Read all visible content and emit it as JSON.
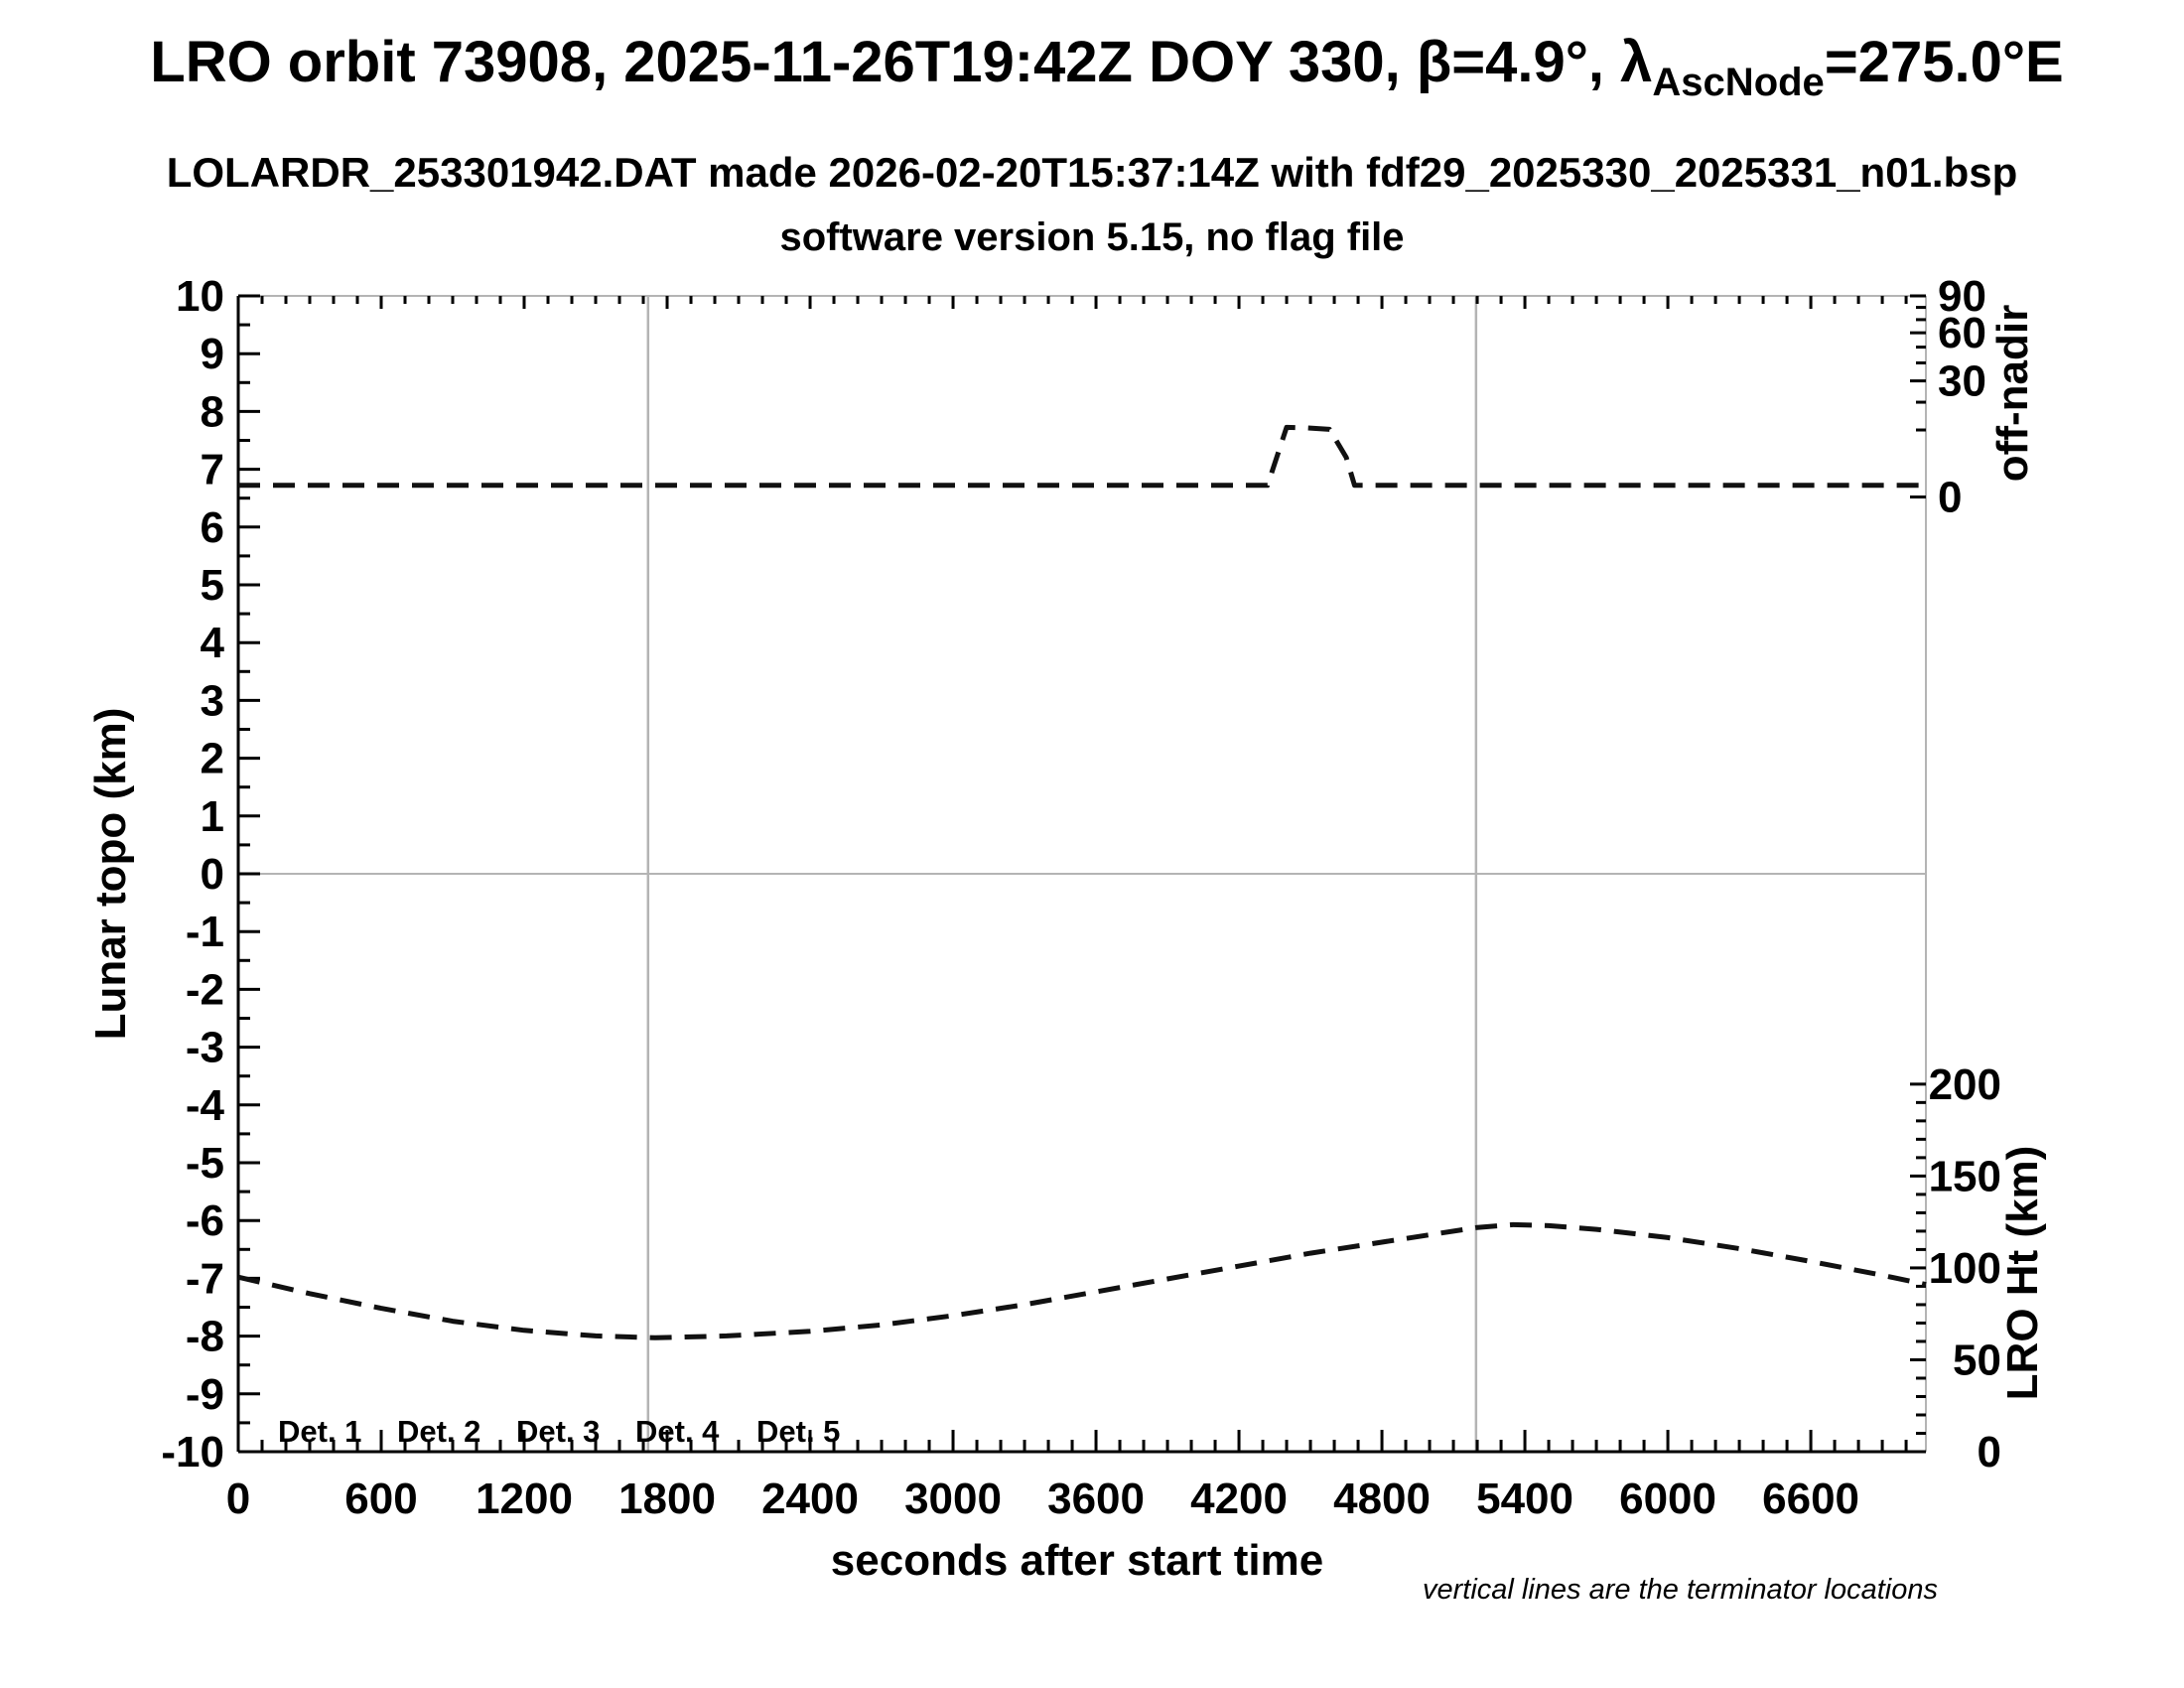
{
  "titles": {
    "main_prefix": "LRO orbit 73908, 2025-11-26T19:42Z DOY 330, β=4.9°, λ",
    "main_sub": "AscNode",
    "main_suffix": "=275.0°E",
    "line2": "LOLARDR_253301942.DAT made 2026-02-20T15:37:14Z with fdf29_2025330_2025331_n01.bsp",
    "line3": "software version 5.15, no flag file"
  },
  "axes": {
    "x": {
      "label": "seconds after start time",
      "min": 0,
      "max": 7083,
      "major_ticks": [
        0,
        600,
        1200,
        1800,
        2400,
        3000,
        3600,
        4200,
        4800,
        5400,
        6000,
        6600
      ],
      "minor_step": 100
    },
    "y_left": {
      "label": "Lunar topo (km)",
      "min": -10,
      "max": 10,
      "major_step": 1,
      "minor_step": 0.5
    },
    "y_right_top": {
      "label": "off-nadir",
      "major_ticks": [
        0,
        30,
        60,
        90
      ],
      "minor_step": 10,
      "scale": "sqrt",
      "zero_frac": 0.174,
      "max_deg": 90
    },
    "y_right_bottom": {
      "label": "LRO Ht (km)",
      "major_ticks": [
        0,
        50,
        100,
        150,
        200
      ],
      "minor_step": 10,
      "max_km": 200,
      "top_frac": 0.682
    }
  },
  "legend": [
    {
      "label": "Det. 1",
      "color": "#000000"
    },
    {
      "label": "Det. 2",
      "color": "#0000ee"
    },
    {
      "label": "Det. 3",
      "color": "#00d500"
    },
    {
      "label": "Det. 4",
      "color": "#ffa500"
    },
    {
      "label": "Det. 5",
      "color": "#ee1100"
    }
  ],
  "footnote": "vertical lines are the terminator locations",
  "colors": {
    "grid_gray": "#b4b4b4",
    "axis_black": "#000000",
    "curve": "#111111"
  },
  "chart_data": {
    "type": "line",
    "title": "LRO orbit 73908 LOLA quicklook",
    "xlabel": "seconds after start time",
    "x_range_s": [
      0,
      7083
    ],
    "terminator_lines_s": [
      1720,
      5195
    ],
    "grid": false,
    "legend_position": "bottom-left",
    "series": [
      {
        "name": "off-nadir angle (deg)",
        "axis": "right_top",
        "style": "dashed",
        "color": "#111111",
        "points": [
          [
            0,
            0.3
          ],
          [
            4320,
            0.3
          ],
          [
            4400,
            10.8
          ],
          [
            4490,
            10.6
          ],
          [
            4580,
            10.2
          ],
          [
            4650,
            3.5
          ],
          [
            4685,
            0.3
          ],
          [
            7083,
            0.3
          ]
        ]
      },
      {
        "name": "LRO height (km)",
        "axis": "right_bottom",
        "style": "dashed",
        "color": "#111111",
        "points": [
          [
            0,
            95
          ],
          [
            300,
            86
          ],
          [
            600,
            78
          ],
          [
            900,
            71
          ],
          [
            1200,
            66
          ],
          [
            1500,
            63
          ],
          [
            1750,
            62
          ],
          [
            2050,
            63
          ],
          [
            2400,
            65.5
          ],
          [
            2700,
            69
          ],
          [
            3000,
            74
          ],
          [
            3300,
            80
          ],
          [
            3600,
            87
          ],
          [
            3900,
            94
          ],
          [
            4200,
            101
          ],
          [
            4500,
            108
          ],
          [
            4800,
            114
          ],
          [
            5000,
            118
          ],
          [
            5200,
            122
          ],
          [
            5350,
            123.5
          ],
          [
            5500,
            123
          ],
          [
            5700,
            121
          ],
          [
            6000,
            116.5
          ],
          [
            6300,
            110.5
          ],
          [
            6600,
            103.5
          ],
          [
            6900,
            96
          ],
          [
            7083,
            91
          ]
        ]
      }
    ]
  }
}
